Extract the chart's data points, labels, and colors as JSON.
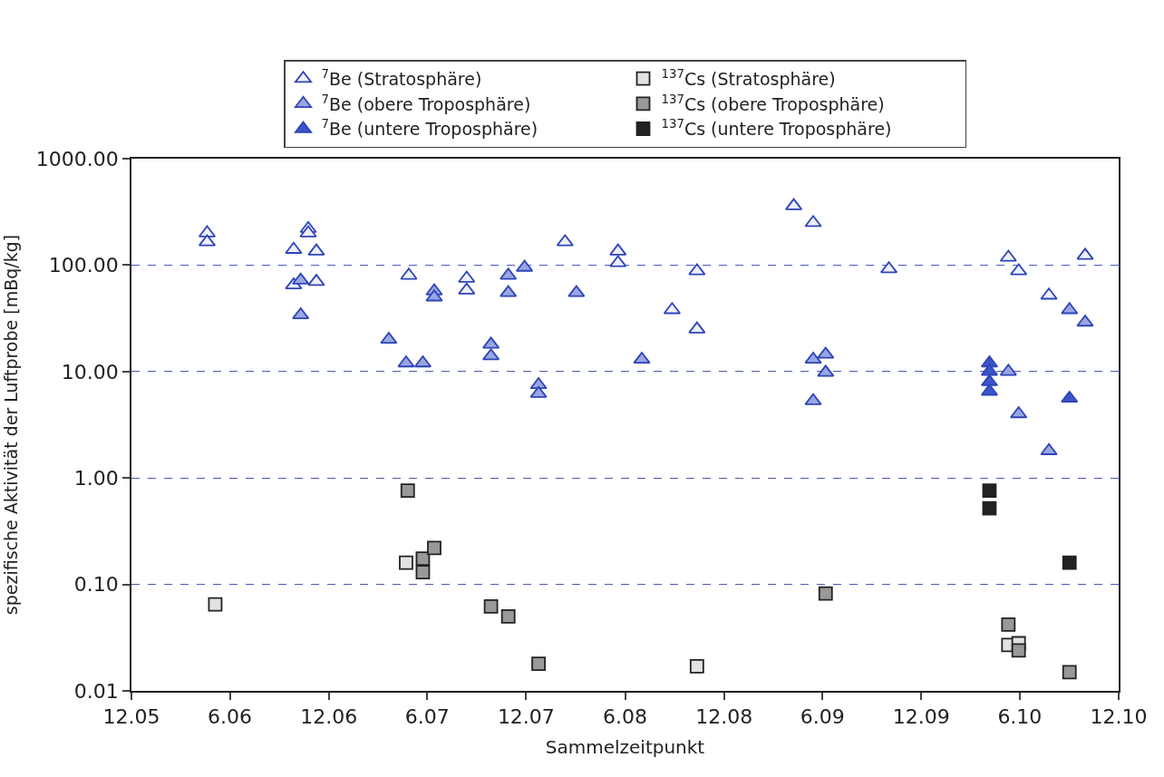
{
  "chart_data": {
    "type": "scatter",
    "xlabel": "Sammelzeitpunkt",
    "ylabel": "spezifische Aktivität der Luftprobe [mBq/kg]",
    "log": "y",
    "grid": "y",
    "legend": "top",
    "xlim": [
      "2005-12-01",
      "2010-12-01"
    ],
    "xticks": [
      {
        "value": "2005-12-01",
        "label": "12.05"
      },
      {
        "value": "2006-06-01",
        "label": "6.06"
      },
      {
        "value": "2006-12-01",
        "label": "12.06"
      },
      {
        "value": "2007-06-01",
        "label": "6.07"
      },
      {
        "value": "2007-12-01",
        "label": "12.07"
      },
      {
        "value": "2008-06-01",
        "label": "6.08"
      },
      {
        "value": "2008-12-01",
        "label": "12.08"
      },
      {
        "value": "2009-06-01",
        "label": "6.09"
      },
      {
        "value": "2009-12-01",
        "label": "12.09"
      },
      {
        "value": "2010-06-01",
        "label": "6.10"
      },
      {
        "value": "2010-12-01",
        "label": "12.10"
      }
    ],
    "ylim": [
      0.01,
      1000
    ],
    "yticks": [
      {
        "value": 0.01,
        "label": "0.01"
      },
      {
        "value": 0.1,
        "label": "0.10"
      },
      {
        "value": 1,
        "label": "1.00"
      },
      {
        "value": 10,
        "label": "10.00"
      },
      {
        "value": 100,
        "label": "100.00"
      },
      {
        "value": 1000,
        "label": "1000.00"
      }
    ],
    "series": [
      {
        "name": "$^{7}$Be (Stratosphäre)",
        "marker": "triangle",
        "color": "#eef0fa",
        "x": [
          "2006-04-20",
          "2006-04-20",
          "2006-09-27",
          "2006-09-27",
          "2006-10-24",
          "2006-10-24",
          "2006-11-08",
          "2006-11-08",
          "2007-04-28",
          "2007-08-13",
          "2007-08-13",
          "2008-02-11",
          "2008-05-19",
          "2008-05-19",
          "2008-08-27",
          "2008-10-12",
          "2008-10-12",
          "2009-04-09",
          "2009-05-15",
          "2009-10-02",
          "2010-05-11",
          "2010-05-30",
          "2010-07-25",
          "2010-09-30"
        ],
        "values": [
          200,
          165,
          140,
          65,
          220,
          200,
          135,
          70,
          80,
          75,
          58,
          165,
          135,
          105,
          38,
          88,
          25,
          360,
          250,
          92,
          118,
          88,
          52,
          123
        ]
      },
      {
        "name": "$^{137}$Cs (Stratosphäre)",
        "marker": "square",
        "color": "#e2e2e2",
        "x": [
          "2006-05-05",
          "2007-04-23",
          "2008-10-12",
          "2010-05-11",
          "2010-05-30"
        ],
        "values": [
          0.065,
          0.16,
          0.017,
          0.027,
          0.028
        ]
      },
      {
        "name": "$^{7}$Be (obere Troposphäre)",
        "marker": "triangle",
        "color": "#9aa6e0",
        "x": [
          "2006-10-10",
          "2006-10-10",
          "2007-03-22",
          "2007-04-23",
          "2007-05-24",
          "2007-06-14",
          "2007-06-14",
          "2007-09-27",
          "2007-09-27",
          "2007-10-29",
          "2007-10-29",
          "2007-11-28",
          "2007-12-24",
          "2007-12-24",
          "2008-03-03",
          "2008-07-02",
          "2009-05-15",
          "2009-05-15",
          "2009-06-07",
          "2009-06-07",
          "2010-05-11",
          "2010-05-30",
          "2010-07-25",
          "2010-09-01",
          "2010-09-30"
        ],
        "values": [
          72,
          34,
          20,
          12,
          12,
          57,
          50,
          18,
          14,
          80,
          55,
          95,
          7.5,
          6.2,
          55,
          13,
          13,
          5.3,
          14.5,
          9.8,
          10,
          4.0,
          1.8,
          38,
          29
        ]
      },
      {
        "name": "$^{137}$Cs (obere Troposphäre)",
        "marker": "square",
        "color": "#999999",
        "x": [
          "2007-04-26",
          "2007-05-24",
          "2007-05-24",
          "2007-06-14",
          "2007-09-27",
          "2007-10-29",
          "2007-12-24",
          "2009-06-07",
          "2010-05-11",
          "2010-05-30",
          "2010-09-01"
        ],
        "values": [
          0.76,
          0.175,
          0.13,
          0.22,
          0.062,
          0.05,
          0.018,
          0.082,
          0.042,
          0.024,
          0.015
        ]
      },
      {
        "name": "$^{7}$Be (untere Troposphäre)",
        "marker": "triangle",
        "color": "#3a55c8",
        "x": [
          "2010-04-06",
          "2010-04-06",
          "2010-04-06",
          "2010-04-06",
          "2010-09-01"
        ],
        "values": [
          12,
          10,
          8,
          6.5,
          5.6
        ]
      },
      {
        "name": "$^{137}$Cs (untere Troposphäre)",
        "marker": "square",
        "color": "#222222",
        "x": [
          "2010-04-06",
          "2010-04-06",
          "2010-09-01"
        ],
        "values": [
          0.76,
          0.52,
          0.16
        ]
      }
    ]
  }
}
